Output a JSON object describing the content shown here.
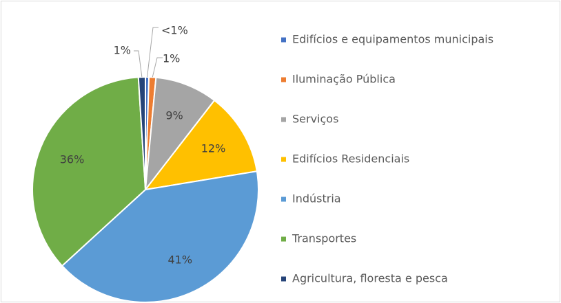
{
  "chart_data": {
    "type": "pie",
    "categories": [
      "Edifícios e equipamentos municipais",
      "Iluminação Pública",
      "Serviços",
      "Edifícios Residenciais",
      "Indústria",
      "Transportes",
      "Agricultura, floresta e pesca"
    ],
    "values": [
      0.5,
      1,
      9,
      12,
      41,
      36,
      1
    ],
    "value_labels": [
      "<1%",
      "1%",
      "9%",
      "12%",
      "41%",
      "36%",
      "1%"
    ],
    "colors": [
      "#4472c4",
      "#ed7d31",
      "#a5a5a5",
      "#ffc000",
      "#5b9bd5",
      "#70ad47",
      "#264478"
    ],
    "legend": "right"
  }
}
